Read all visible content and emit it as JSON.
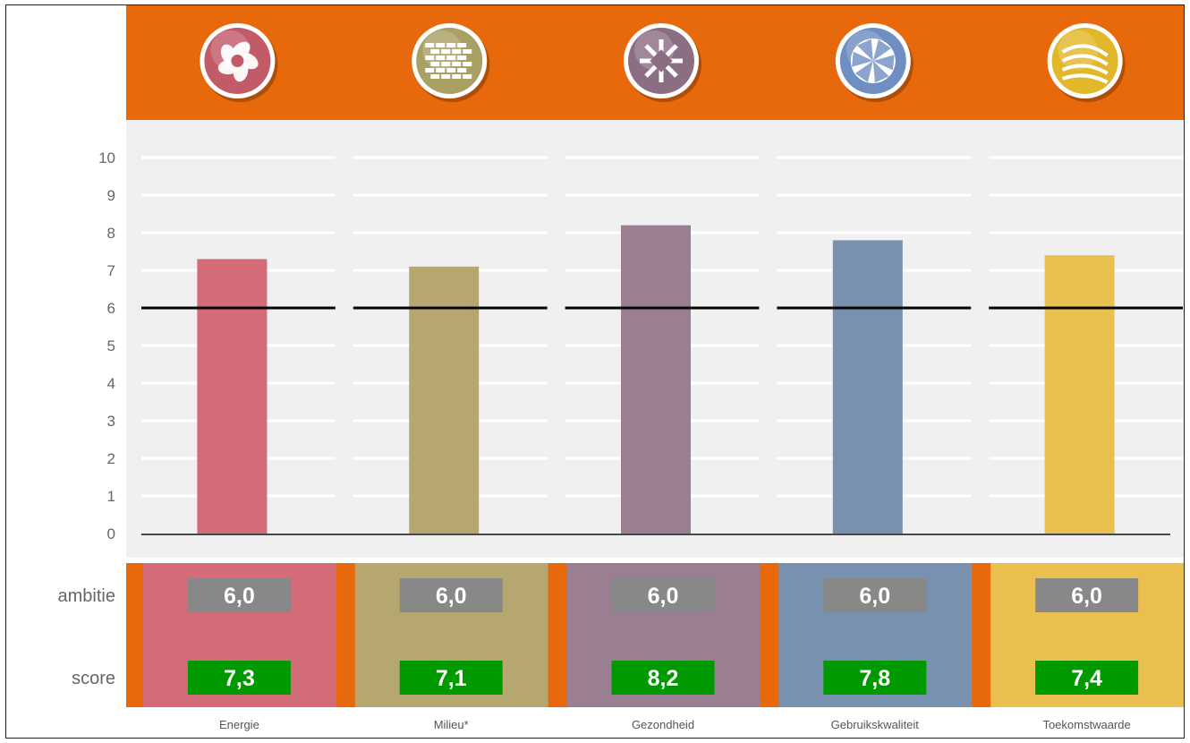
{
  "chart_data": {
    "type": "bar",
    "title": "",
    "xlabel": "",
    "ylabel": "",
    "ylim": [
      0,
      10
    ],
    "yticks": [
      "0",
      "1",
      "2",
      "3",
      "4",
      "5",
      "6",
      "7",
      "8",
      "9",
      "10"
    ],
    "grid": true,
    "categories": [
      "Energie",
      "Milieu*",
      "Gezondheid",
      "Gebruikskwaliteit",
      "Toekomstwaarde"
    ],
    "values": [
      7.3,
      7.1,
      8.2,
      7.8,
      7.4
    ],
    "reference_line": 6.0,
    "icons": [
      "energy-swirl-icon",
      "brick-wall-icon",
      "snowflake-cross-icon",
      "camera-shutter-icon",
      "striped-globe-icon"
    ],
    "colors": [
      "#d36b78",
      "#b5a76f",
      "#9a7f92",
      "#7791af",
      "#e9c050"
    ],
    "icon_colors": [
      "#c35a68",
      "#a9a063",
      "#8b6e84",
      "#6f8ec2",
      "#e2b82a"
    ],
    "header_color": "#e8690b",
    "good_color": "#009900",
    "neutral_color": "#888888",
    "rows": [
      {
        "label": "ambitie",
        "values": [
          "6,0",
          "6,0",
          "6,0",
          "6,0",
          "6,0"
        ]
      },
      {
        "label": "score",
        "values": [
          "7,3",
          "7,1",
          "8,2",
          "7,8",
          "7,4"
        ]
      }
    ]
  }
}
